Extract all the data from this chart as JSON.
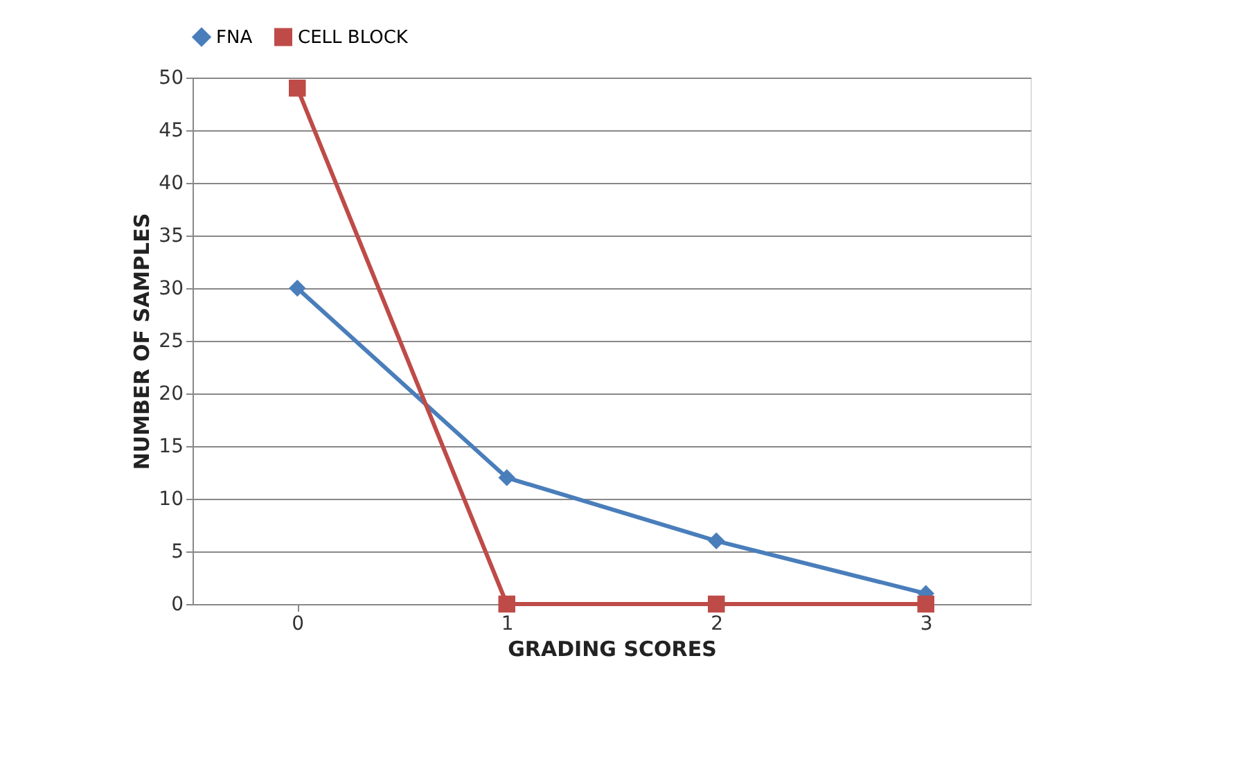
{
  "chart_data": {
    "type": "line",
    "xlabel": "GRADING SCORES",
    "ylabel": "NUMBER OF SAMPLES",
    "categories": [
      "0",
      "1",
      "2",
      "3"
    ],
    "series": [
      {
        "name": "FNA",
        "color": "#4a7ebb",
        "values": [
          30,
          12,
          6,
          1
        ],
        "marker": "diamond"
      },
      {
        "name": "CELL BLOCK",
        "color": "#be4b48",
        "values": [
          49,
          0,
          0,
          0
        ],
        "marker": "square"
      }
    ],
    "ylim": [
      0,
      50
    ],
    "yticks": [
      0,
      5,
      10,
      15,
      20,
      25,
      30,
      35,
      40,
      45,
      50
    ],
    "grid": "y",
    "legend": "top"
  }
}
